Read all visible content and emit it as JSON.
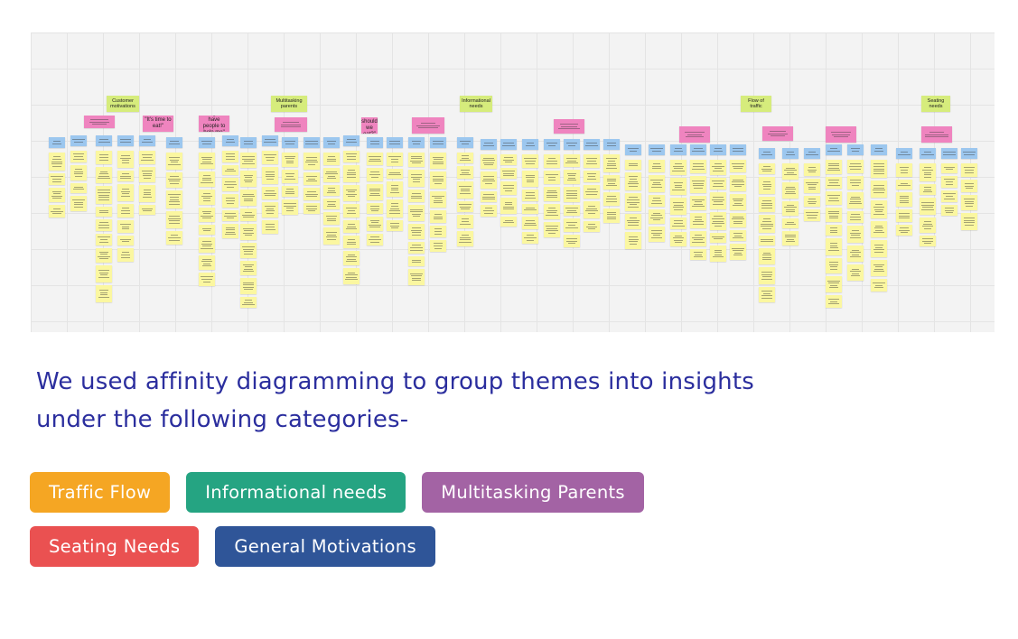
{
  "board": {
    "name": "affinity-diagram-board",
    "colors": {
      "yellow": "#fbf7a0",
      "blue": "#9cc7ef",
      "pink": "#ef84bf",
      "green": "#d6ec7c"
    },
    "labels": [
      {
        "text": "Customer motivations"
      },
      {
        "text": "Multitasking parents"
      },
      {
        "text": "Informational needs"
      },
      {
        "text": "Flow of traffic"
      },
      {
        "text": "Seating needs"
      }
    ],
    "pink_notes": [
      {
        "text": "\"It's time to eat!\""
      },
      {
        "text": "\"I'm glad I have people to help me\""
      },
      {
        "text": "\"What should we eat?\""
      }
    ]
  },
  "caption": "We used affinity diagramming to group themes into insights under the following categories-",
  "tags": [
    [
      {
        "label": "Traffic Flow",
        "color": "#f5a623"
      },
      {
        "label": "Informational needs",
        "color": "#25a482"
      },
      {
        "label": "Multitasking Parents",
        "color": "#a363a4"
      }
    ],
    [
      {
        "label": "Seating Needs",
        "color": "#ea5151"
      },
      {
        "label": "General Motivations",
        "color": "#2f5598"
      }
    ]
  ]
}
